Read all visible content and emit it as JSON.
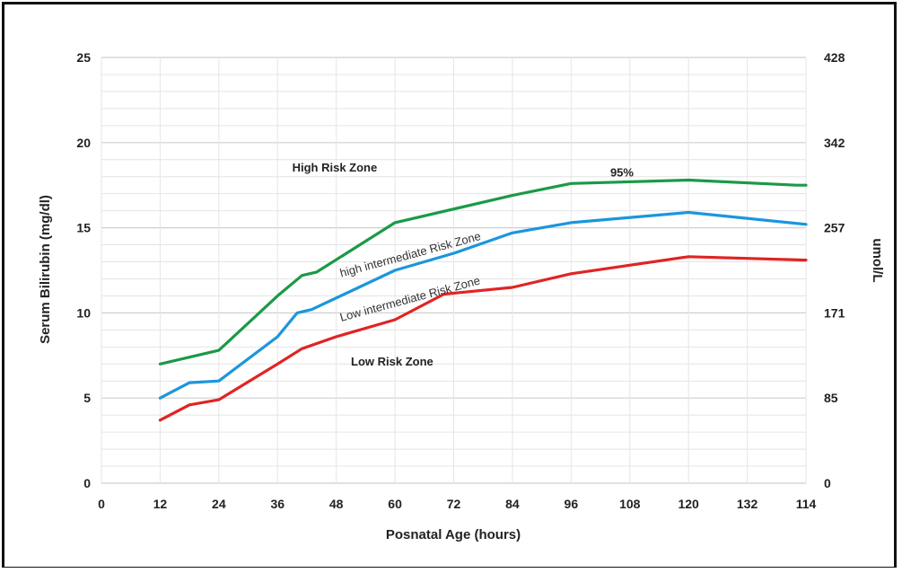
{
  "chart_data": {
    "type": "line",
    "xlabel": "Posnatal Age (hours)",
    "ylabel": "Serum Bilirubin (mg/dl)",
    "y2label": "umol/L",
    "x_tick_labels": [
      "0",
      "12",
      "24",
      "36",
      "48",
      "60",
      "72",
      "84",
      "96",
      "108",
      "120",
      "132",
      "114"
    ],
    "y_ticks": [
      0,
      5,
      10,
      15,
      20,
      25
    ],
    "y2_tick_labels": [
      "0",
      "85",
      "171",
      "257",
      "342",
      "428"
    ],
    "xlim": [
      0,
      144
    ],
    "ylim": [
      0,
      25
    ],
    "grid": true,
    "series": [
      {
        "color": "#1a9a46",
        "x": [
          12,
          24,
          36,
          41,
          44,
          60,
          84,
          96,
          120,
          142,
          144
        ],
        "y": [
          7.0,
          7.8,
          11.0,
          12.2,
          12.4,
          15.3,
          16.9,
          17.6,
          17.8,
          17.5,
          17.5
        ]
      },
      {
        "color": "#1b96dd",
        "x": [
          12,
          18,
          24,
          36,
          40,
          43,
          60,
          72,
          84,
          96,
          120,
          144
        ],
        "y": [
          5.0,
          5.9,
          6.0,
          8.6,
          10.0,
          10.2,
          12.5,
          13.5,
          14.7,
          15.3,
          15.9,
          15.2
        ]
      },
      {
        "color": "#e02424",
        "x": [
          12,
          18,
          24,
          36,
          41,
          48,
          60,
          70,
          84,
          96,
          120,
          144
        ],
        "y": [
          3.7,
          4.6,
          4.9,
          7.0,
          7.9,
          8.6,
          9.6,
          11.1,
          11.5,
          12.3,
          13.3,
          13.1
        ]
      }
    ],
    "annotations": [
      {
        "text": "High Risk Zone",
        "x": 39,
        "y": 18.3
      },
      {
        "text": "95%",
        "x": 104,
        "y": 18.0
      },
      {
        "text": "high intermediate Risk Zone",
        "x": 49,
        "y": 12.1
      },
      {
        "text": "Low intermediate Risk Zone",
        "x": 49,
        "y": 9.5
      },
      {
        "text": "Low Risk Zone",
        "x": 51,
        "y": 6.9
      }
    ]
  }
}
